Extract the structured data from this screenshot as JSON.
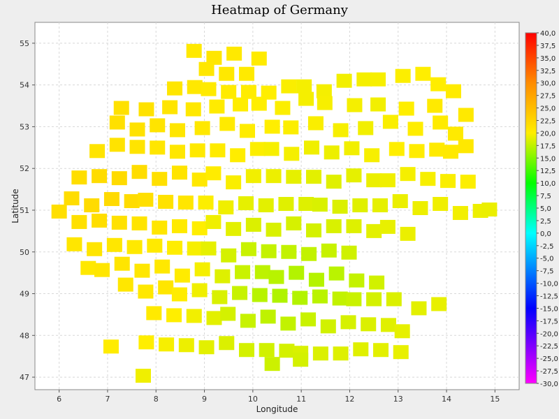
{
  "window": {
    "background": "#eeeeee"
  },
  "chart_data": {
    "type": "heatmap",
    "title": "Heatmap of Germany",
    "xlabel": "Longitude",
    "ylabel": "Latitude",
    "xlim": [
      5.5,
      15.5
    ],
    "ylim": [
      46.7,
      55.5
    ],
    "x_ticks": [
      6,
      7,
      8,
      9,
      10,
      11,
      12,
      13,
      14,
      15
    ],
    "y_ticks": [
      47,
      48,
      49,
      50,
      51,
      52,
      53,
      54,
      55
    ],
    "grid": true,
    "legend": "colorbar-right",
    "colorbar": {
      "min": -30,
      "max": 40,
      "step": 2.5,
      "labels": [
        "40,0",
        "37,5",
        "35,0",
        "32,5",
        "30,0",
        "27,5",
        "25,0",
        "22,5",
        "20,0",
        "17,5",
        "15,0",
        "12,5",
        "10,0",
        "7,5",
        "5,0",
        "2,5",
        "0,0",
        "-2,5",
        "-5,0",
        "-7,5",
        "-10,0",
        "-12,5",
        "-15,0",
        "-17,5",
        "-20,0",
        "-22,5",
        "-25,0",
        "-27,5",
        "-30,0"
      ],
      "colors": [
        "#ff0000",
        "#ff8c00",
        "#ffee00",
        "#00ff00",
        "#00ffff",
        "#0000ff",
        "#ff00ff"
      ],
      "color_stops": [
        40,
        30,
        20,
        10,
        0,
        -15,
        -30
      ]
    },
    "series_note": "Dense grid of station readings across Germany, values roughly 17 to 22",
    "points": [
      [
        8.8,
        54.8,
        20.5
      ],
      [
        9.2,
        54.7,
        20.8
      ],
      [
        9.6,
        54.75,
        20.5
      ],
      [
        10.1,
        54.7,
        20.3
      ],
      [
        9.0,
        54.4,
        20.7
      ],
      [
        9.4,
        54.35,
        20.6
      ],
      [
        9.8,
        54.3,
        20.4
      ],
      [
        8.3,
        53.9,
        20.8
      ],
      [
        8.7,
        54.0,
        20.6
      ],
      [
        9.1,
        53.9,
        20.4
      ],
      [
        9.5,
        53.9,
        20.3
      ],
      [
        9.9,
        53.85,
        20.2
      ],
      [
        10.3,
        53.9,
        20.0
      ],
      [
        10.7,
        54.0,
        19.8
      ],
      [
        11.0,
        53.95,
        19.6
      ],
      [
        11.4,
        53.9,
        19.6
      ],
      [
        11.8,
        54.1,
        19.5
      ],
      [
        12.2,
        54.2,
        19.6
      ],
      [
        12.6,
        54.15,
        19.7
      ],
      [
        13.1,
        54.3,
        19.9
      ],
      [
        13.5,
        54.3,
        20.0
      ],
      [
        13.8,
        54.0,
        20.1
      ],
      [
        14.1,
        53.9,
        20.3
      ],
      [
        13.7,
        53.5,
        20.4
      ],
      [
        13.1,
        53.5,
        20.0
      ],
      [
        12.5,
        53.55,
        19.5
      ],
      [
        12.0,
        53.6,
        19.6
      ],
      [
        11.5,
        53.6,
        19.7
      ],
      [
        11.1,
        53.65,
        19.6
      ],
      [
        10.6,
        53.5,
        19.9
      ],
      [
        10.1,
        53.55,
        20.0
      ],
      [
        9.7,
        53.6,
        20.1
      ],
      [
        9.2,
        53.5,
        20.3
      ],
      [
        8.7,
        53.5,
        20.6
      ],
      [
        8.2,
        53.5,
        20.9
      ],
      [
        7.7,
        53.4,
        21.2
      ],
      [
        7.3,
        53.5,
        21.3
      ],
      [
        7.2,
        53.1,
        21.4
      ],
      [
        7.6,
        53.0,
        21.2
      ],
      [
        8.0,
        53.05,
        21.0
      ],
      [
        8.4,
        53.0,
        20.8
      ],
      [
        8.9,
        53.0,
        20.6
      ],
      [
        9.4,
        53.05,
        20.4
      ],
      [
        9.8,
        52.95,
        20.2
      ],
      [
        10.3,
        53.0,
        20.0
      ],
      [
        10.8,
        53.05,
        19.9
      ],
      [
        11.3,
        53.1,
        19.8
      ],
      [
        11.8,
        53.0,
        19.7
      ],
      [
        12.3,
        53.0,
        19.5
      ],
      [
        12.8,
        53.1,
        19.8
      ],
      [
        13.3,
        53.0,
        20.1
      ],
      [
        13.8,
        53.1,
        20.3
      ],
      [
        14.1,
        52.9,
        20.4
      ],
      [
        14.3,
        53.3,
        20.5
      ],
      [
        6.8,
        52.5,
        21.0
      ],
      [
        7.2,
        52.6,
        21.1
      ],
      [
        7.6,
        52.5,
        21.0
      ],
      [
        8.0,
        52.55,
        20.8
      ],
      [
        8.4,
        52.4,
        20.7
      ],
      [
        8.8,
        52.5,
        20.5
      ],
      [
        9.2,
        52.45,
        20.3
      ],
      [
        9.6,
        52.4,
        20.1
      ],
      [
        10.0,
        52.5,
        19.9
      ],
      [
        10.4,
        52.45,
        19.7
      ],
      [
        10.8,
        52.4,
        19.6
      ],
      [
        11.2,
        52.5,
        19.4
      ],
      [
        11.6,
        52.45,
        19.3
      ],
      [
        12.0,
        52.5,
        19.5
      ],
      [
        12.4,
        52.4,
        19.7
      ],
      [
        12.9,
        52.5,
        20.0
      ],
      [
        13.3,
        52.4,
        20.2
      ],
      [
        13.7,
        52.5,
        20.4
      ],
      [
        14.1,
        52.4,
        20.5
      ],
      [
        14.4,
        52.6,
        20.6
      ],
      [
        6.4,
        51.8,
        21.6
      ],
      [
        6.8,
        51.9,
        21.8
      ],
      [
        7.2,
        51.8,
        21.9
      ],
      [
        7.6,
        51.9,
        21.7
      ],
      [
        8.0,
        51.8,
        21.4
      ],
      [
        8.4,
        51.9,
        21.0
      ],
      [
        8.8,
        51.8,
        20.6
      ],
      [
        9.2,
        51.9,
        20.2
      ],
      [
        9.6,
        51.75,
        19.8
      ],
      [
        10.0,
        51.85,
        19.5
      ],
      [
        10.4,
        51.8,
        19.3
      ],
      [
        10.8,
        51.85,
        19.0
      ],
      [
        11.2,
        51.8,
        18.9
      ],
      [
        11.6,
        51.75,
        18.8
      ],
      [
        12.0,
        51.85,
        19.0
      ],
      [
        12.4,
        51.8,
        19.2
      ],
      [
        12.8,
        51.75,
        19.4
      ],
      [
        13.2,
        51.85,
        19.6
      ],
      [
        13.6,
        51.8,
        19.7
      ],
      [
        14.0,
        51.7,
        19.8
      ],
      [
        14.4,
        51.75,
        19.9
      ],
      [
        6.2,
        51.3,
        21.7
      ],
      [
        6.6,
        51.2,
        21.9
      ],
      [
        7.0,
        51.3,
        22.0
      ],
      [
        7.4,
        51.2,
        21.8
      ],
      [
        7.8,
        51.3,
        21.5
      ],
      [
        8.2,
        51.2,
        21.2
      ],
      [
        8.6,
        51.25,
        20.8
      ],
      [
        9.0,
        51.2,
        19.9
      ],
      [
        9.4,
        51.15,
        19.4
      ],
      [
        9.8,
        51.2,
        19.0
      ],
      [
        10.2,
        51.1,
        18.9
      ],
      [
        10.6,
        51.2,
        18.8
      ],
      [
        11.0,
        51.15,
        18.7
      ],
      [
        11.4,
        51.2,
        18.5
      ],
      [
        11.8,
        51.1,
        18.6
      ],
      [
        12.2,
        51.2,
        18.8
      ],
      [
        12.6,
        51.15,
        19.0
      ],
      [
        13.0,
        51.2,
        19.2
      ],
      [
        13.4,
        51.1,
        19.3
      ],
      [
        13.8,
        51.15,
        19.4
      ],
      [
        14.2,
        51.0,
        19.5
      ],
      [
        14.6,
        51.0,
        19.3
      ],
      [
        14.9,
        51.1,
        19.2
      ],
      [
        6.0,
        51.0,
        21.5
      ],
      [
        6.4,
        50.7,
        21.4
      ],
      [
        6.8,
        50.8,
        21.6
      ],
      [
        7.2,
        50.7,
        21.3
      ],
      [
        7.6,
        50.75,
        21.0
      ],
      [
        8.0,
        50.6,
        20.8
      ],
      [
        8.4,
        50.7,
        20.4
      ],
      [
        8.8,
        50.6,
        20.0
      ],
      [
        9.2,
        50.7,
        19.4
      ],
      [
        9.6,
        50.6,
        18.9
      ],
      [
        10.0,
        50.65,
        18.6
      ],
      [
        10.4,
        50.6,
        18.5
      ],
      [
        10.8,
        50.7,
        18.4
      ],
      [
        11.2,
        50.6,
        18.3
      ],
      [
        11.6,
        50.65,
        18.5
      ],
      [
        12.0,
        50.6,
        18.7
      ],
      [
        12.4,
        50.55,
        18.9
      ],
      [
        12.8,
        50.6,
        19.1
      ],
      [
        13.2,
        50.5,
        19.2
      ],
      [
        6.3,
        50.2,
        20.8
      ],
      [
        6.7,
        50.15,
        20.9
      ],
      [
        7.1,
        50.2,
        20.7
      ],
      [
        7.5,
        50.1,
        20.5
      ],
      [
        7.9,
        50.2,
        20.4
      ],
      [
        8.3,
        50.1,
        20.1
      ],
      [
        8.7,
        50.15,
        19.7
      ],
      [
        9.1,
        50.1,
        19.0
      ],
      [
        9.5,
        50.0,
        18.3
      ],
      [
        9.9,
        50.1,
        17.9
      ],
      [
        10.3,
        50.0,
        17.7
      ],
      [
        10.7,
        50.05,
        17.6
      ],
      [
        11.1,
        49.95,
        17.6
      ],
      [
        11.5,
        50.1,
        17.8
      ],
      [
        11.9,
        50.0,
        18.1
      ],
      [
        6.5,
        49.7,
        20.6
      ],
      [
        6.9,
        49.6,
        20.8
      ],
      [
        7.3,
        49.7,
        20.9
      ],
      [
        7.7,
        49.6,
        20.7
      ],
      [
        8.1,
        49.65,
        20.6
      ],
      [
        8.5,
        49.5,
        20.3
      ],
      [
        8.9,
        49.6,
        19.6
      ],
      [
        9.3,
        49.5,
        18.7
      ],
      [
        9.7,
        49.55,
        17.9
      ],
      [
        10.1,
        49.5,
        17.4
      ],
      [
        10.5,
        49.45,
        17.2
      ],
      [
        10.9,
        49.5,
        17.0
      ],
      [
        11.3,
        49.4,
        17.1
      ],
      [
        11.7,
        49.5,
        17.3
      ],
      [
        12.1,
        49.4,
        17.7
      ],
      [
        12.5,
        49.3,
        18.2
      ],
      [
        7.3,
        49.2,
        20.7
      ],
      [
        7.7,
        49.1,
        20.6
      ],
      [
        8.1,
        49.15,
        20.8
      ],
      [
        8.5,
        49.05,
        20.2
      ],
      [
        8.9,
        49.1,
        19.4
      ],
      [
        9.3,
        49.0,
        18.5
      ],
      [
        9.7,
        49.05,
        17.8
      ],
      [
        10.1,
        48.95,
        17.2
      ],
      [
        10.5,
        49.0,
        16.9
      ],
      [
        10.9,
        48.9,
        17.0
      ],
      [
        11.3,
        49.0,
        17.3
      ],
      [
        11.7,
        48.9,
        17.6
      ],
      [
        12.1,
        48.95,
        17.9
      ],
      [
        12.5,
        48.9,
        18.3
      ],
      [
        12.9,
        48.85,
        18.6
      ],
      [
        13.4,
        48.7,
        18.9
      ],
      [
        13.8,
        48.75,
        19.1
      ],
      [
        7.9,
        48.6,
        20.4
      ],
      [
        8.3,
        48.5,
        20.0
      ],
      [
        8.7,
        48.55,
        19.5
      ],
      [
        9.1,
        48.45,
        18.9
      ],
      [
        9.5,
        48.5,
        18.3
      ],
      [
        9.9,
        48.4,
        17.8
      ],
      [
        10.3,
        48.45,
        17.5
      ],
      [
        10.7,
        48.35,
        17.6
      ],
      [
        11.1,
        48.4,
        17.9
      ],
      [
        11.5,
        48.3,
        18.2
      ],
      [
        11.9,
        48.35,
        18.4
      ],
      [
        12.3,
        48.25,
        18.6
      ],
      [
        12.7,
        48.3,
        18.8
      ],
      [
        13.1,
        48.1,
        19.0
      ],
      [
        7.8,
        47.9,
        20.0
      ],
      [
        8.2,
        47.8,
        19.7
      ],
      [
        8.6,
        47.85,
        19.3
      ],
      [
        9.0,
        47.75,
        18.9
      ],
      [
        9.4,
        47.8,
        18.6
      ],
      [
        9.8,
        47.7,
        18.3
      ],
      [
        10.2,
        47.65,
        18.2
      ],
      [
        10.6,
        47.7,
        18.3
      ],
      [
        11.0,
        47.6,
        18.5
      ],
      [
        11.4,
        47.65,
        18.6
      ],
      [
        11.8,
        47.6,
        18.7
      ],
      [
        12.2,
        47.65,
        18.8
      ],
      [
        12.6,
        47.7,
        18.9
      ],
      [
        13.0,
        47.6,
        19.1
      ],
      [
        7.0,
        47.8,
        20.2
      ],
      [
        7.65,
        47.05,
        19.4
      ],
      [
        10.3,
        47.4,
        18.0
      ],
      [
        11.0,
        47.45,
        18.3
      ]
    ]
  }
}
